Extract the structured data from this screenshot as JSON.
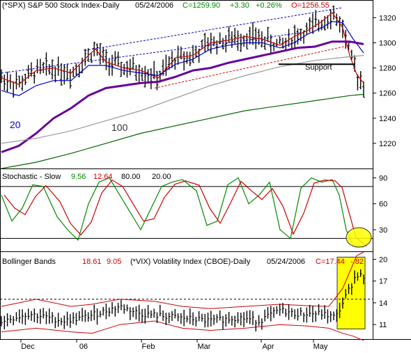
{
  "chart_data": [
    {
      "type": "ohlc",
      "panel": "price",
      "header": {
        "symbol": "(*SPX) S&P 500 Stock Index-Daily",
        "date": "05/24/2006",
        "close": "C=1259.90",
        "change": "+3.30",
        "pct": "+0.26%",
        "open": "O=1256.55"
      },
      "y_ticks": [
        "1320",
        "1300",
        "1280",
        "1260",
        "1240",
        "1220"
      ],
      "ylim": [
        1200,
        1333
      ],
      "annotations": {
        "ma20": "20",
        "ma100": "100",
        "support": "Support"
      },
      "support_level": 1283,
      "series": [
        {
          "name": "MA10",
          "color": "#cc0000",
          "points": [
            [
              0,
              1272
            ],
            [
              25,
              1267
            ],
            [
              50,
              1278
            ],
            [
              75,
              1280
            ],
            [
              100,
              1276
            ],
            [
              125,
              1290
            ],
            [
              135,
              1295
            ],
            [
              150,
              1285
            ],
            [
              175,
              1280
            ],
            [
              200,
              1278
            ],
            [
              225,
              1272
            ],
            [
              250,
              1288
            ],
            [
              275,
              1290
            ],
            [
              300,
              1300
            ],
            [
              325,
              1302
            ],
            [
              350,
              1305
            ],
            [
              375,
              1303
            ],
            [
              400,
              1298
            ],
            [
              420,
              1305
            ],
            [
              440,
              1310
            ],
            [
              460,
              1317
            ],
            [
              475,
              1324
            ],
            [
              490,
              1312
            ],
            [
              500,
              1290
            ],
            [
              510,
              1275
            ],
            [
              520,
              1268
            ]
          ]
        },
        {
          "name": "MA20",
          "color": "#0000cc",
          "points": [
            [
              0,
              1262
            ],
            [
              25,
              1258
            ],
            [
              50,
              1266
            ],
            [
              75,
              1270
            ],
            [
              100,
              1270
            ],
            [
              125,
              1282
            ],
            [
              150,
              1282
            ],
            [
              175,
              1278
            ],
            [
              200,
              1276
            ],
            [
              225,
              1274
            ],
            [
              250,
              1283
            ],
            [
              275,
              1287
            ],
            [
              300,
              1295
            ],
            [
              325,
              1298
            ],
            [
              350,
              1300
            ],
            [
              375,
              1300
            ],
            [
              400,
              1296
            ],
            [
              420,
              1300
            ],
            [
              440,
              1307
            ],
            [
              460,
              1312
            ],
            [
              475,
              1317
            ],
            [
              490,
              1316
            ],
            [
              505,
              1303
            ],
            [
              520,
              1292
            ]
          ]
        },
        {
          "name": "MA50",
          "color": "#660099",
          "points": [
            [
              0,
              1213
            ],
            [
              25,
              1218
            ],
            [
              50,
              1228
            ],
            [
              75,
              1240
            ],
            [
              100,
              1248
            ],
            [
              125,
              1258
            ],
            [
              150,
              1264
            ],
            [
              175,
              1266
            ],
            [
              200,
              1268
            ],
            [
              225,
              1269
            ],
            [
              250,
              1273
            ],
            [
              275,
              1278
            ],
            [
              300,
              1280
            ],
            [
              325,
              1284
            ],
            [
              350,
              1287
            ],
            [
              375,
              1290
            ],
            [
              400,
              1293
            ],
            [
              425,
              1296
            ],
            [
              450,
              1297
            ],
            [
              475,
              1301
            ],
            [
              500,
              1301
            ],
            [
              520,
              1299
            ]
          ]
        },
        {
          "name": "MA100",
          "color": "#999999",
          "points": [
            [
              0,
              1220
            ],
            [
              50,
              1224
            ],
            [
              100,
              1230
            ],
            [
              150,
              1238
            ],
            [
              200,
              1246
            ],
            [
              250,
              1256
            ],
            [
              300,
              1266
            ],
            [
              350,
              1274
            ],
            [
              400,
              1281
            ],
            [
              450,
              1286
            ],
            [
              500,
              1289
            ],
            [
              520,
              1290
            ]
          ]
        },
        {
          "name": "MA200",
          "color": "#006600",
          "points": [
            [
              0,
              1200
            ],
            [
              50,
              1205
            ],
            [
              100,
              1212
            ],
            [
              150,
              1220
            ],
            [
              200,
              1228
            ],
            [
              250,
              1234
            ],
            [
              300,
              1240
            ],
            [
              350,
              1246
            ],
            [
              400,
              1250
            ],
            [
              450,
              1254
            ],
            [
              500,
              1258
            ],
            [
              520,
              1259
            ]
          ]
        }
      ],
      "trendlines": [
        {
          "style": "dashed",
          "color": "#0000cc",
          "points": [
            [
              0,
              1276
            ],
            [
              430,
              1308
            ]
          ]
        },
        {
          "style": "dashed",
          "color": "#0000cc",
          "points": [
            [
              120,
              1294
            ],
            [
              490,
              1328
            ]
          ]
        },
        {
          "style": "dashed",
          "color": "#cc0000",
          "points": [
            [
              220,
              1264
            ],
            [
              500,
              1298
            ]
          ]
        }
      ]
    },
    {
      "type": "line",
      "panel": "stochastic",
      "title": "Stochastic - Slow",
      "values": {
        "k": "9.56",
        "d": "12.64",
        "upper": "80.00",
        "lower": "20.00"
      },
      "y_ticks": [
        "90",
        "60",
        "30"
      ],
      "ylim": [
        5,
        100
      ],
      "levels": [
        80,
        20
      ],
      "series": [
        {
          "name": "%K",
          "color": "#008800"
        },
        {
          "name": "%D",
          "color": "#cc0000"
        }
      ]
    },
    {
      "type": "ohlc",
      "panel": "vix",
      "header": {
        "title": "Bollinger Bands",
        "bb_period": "18.61",
        "bb_width": "9.05",
        "symbol": "(*VIX) Volatility Index (CBOE)-Daily",
        "date": "05/24/2006",
        "close": "C=17.44",
        "change": "-.82"
      },
      "y_ticks": [
        "20",
        "17",
        "14",
        "11"
      ],
      "ylim": [
        9,
        21
      ],
      "reference_level": 14.5,
      "bands_color": "#cc0000"
    }
  ],
  "x_axis": {
    "labels": [
      "Dec",
      "06",
      "Feb",
      "Mar",
      "Apr",
      "May"
    ]
  },
  "highlight": {
    "circle_color": "#ffff00",
    "box_color": "#ffff00"
  }
}
